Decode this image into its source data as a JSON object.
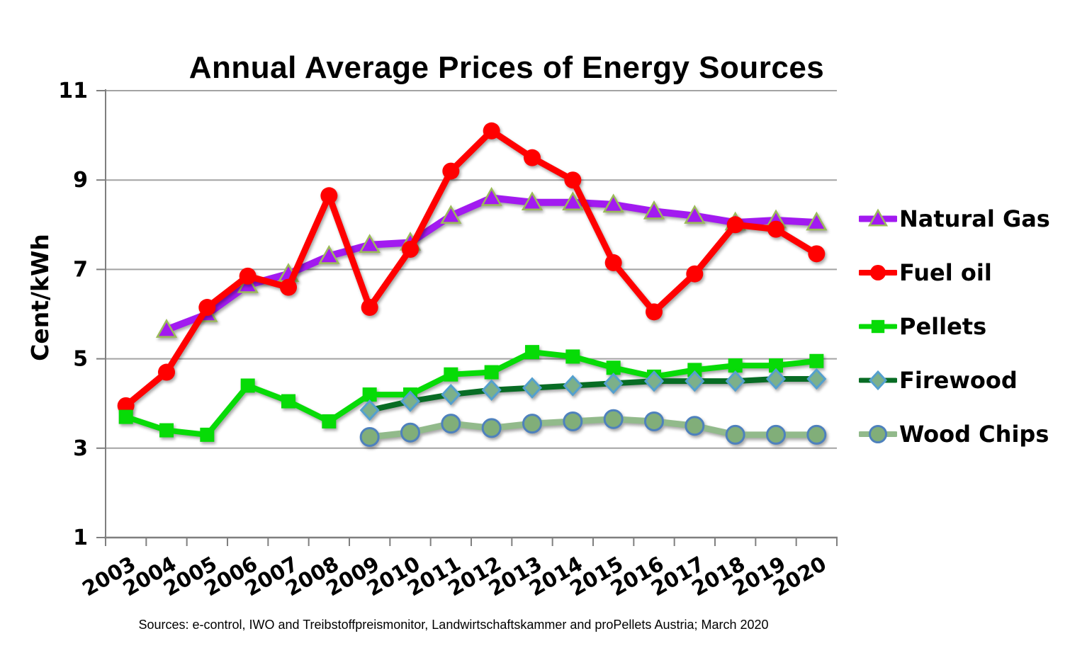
{
  "title": "Annual Average Prices of Energy Sources",
  "source_note": "Sources: e-control, IWO and Treibstoffpreismonitor, Landwirtschaftskammer and proPellets Austria; March 2020",
  "y_axis": {
    "title": "Cent/kWh",
    "min": 1,
    "max": 11,
    "ticks": [
      1,
      3,
      5,
      7,
      9,
      11
    ]
  },
  "chart_data": {
    "type": "line",
    "title": "Annual Average Prices of Energy Sources",
    "xlabel": "",
    "ylabel": "Cent/kWh",
    "ylim": [
      1,
      11
    ],
    "grid": true,
    "legend_position": "right",
    "categories": [
      "2003",
      "2004",
      "2005",
      "2006",
      "2007",
      "2008",
      "2009",
      "2010",
      "2011",
      "2012",
      "2013",
      "2014",
      "2015",
      "2016",
      "2017",
      "2018",
      "2019",
      "2020"
    ],
    "series": [
      {
        "name": "Natural Gas",
        "color": "#A21AF0",
        "marker": "triangle",
        "marker_fill": "#A21AF0",
        "marker_border": "#9BBB59",
        "values": [
          null,
          5.65,
          6.0,
          6.65,
          6.9,
          7.3,
          7.55,
          7.6,
          8.2,
          8.6,
          8.5,
          8.5,
          8.45,
          8.3,
          8.2,
          8.05,
          8.1,
          8.05
        ]
      },
      {
        "name": "Fuel oil",
        "color": "#FF0000",
        "marker": "circle",
        "marker_fill": "#FF0000",
        "marker_border": "#FF0000",
        "values": [
          3.95,
          4.7,
          6.15,
          6.85,
          6.6,
          8.65,
          6.15,
          7.45,
          9.2,
          10.1,
          9.5,
          9.0,
          7.15,
          6.05,
          6.9,
          8.0,
          7.9,
          7.35
        ]
      },
      {
        "name": "Pellets",
        "color": "#07DB07",
        "marker": "square",
        "marker_fill": "#07DB07",
        "marker_border": "#07DB07",
        "values": [
          3.7,
          3.4,
          3.3,
          4.4,
          4.05,
          3.6,
          4.2,
          4.2,
          4.65,
          4.7,
          5.15,
          5.05,
          4.8,
          4.6,
          4.75,
          4.85,
          4.85,
          4.95
        ]
      },
      {
        "name": "Firewood",
        "color": "#086C24",
        "marker": "diamond",
        "marker_fill": "#7CB08A",
        "marker_border": "#54A0CE",
        "values": [
          null,
          null,
          null,
          null,
          null,
          null,
          3.85,
          4.05,
          4.2,
          4.3,
          4.35,
          4.4,
          4.45,
          4.5,
          4.5,
          4.5,
          4.55,
          4.55
        ]
      },
      {
        "name": "Wood Chips",
        "color": "#92BA8B",
        "marker": "circle",
        "marker_fill": "#81AE79",
        "marker_border": "#4E81BD",
        "values": [
          null,
          null,
          null,
          null,
          null,
          null,
          3.25,
          3.35,
          3.55,
          3.45,
          3.55,
          3.6,
          3.65,
          3.6,
          3.5,
          3.3,
          3.3,
          3.3
        ]
      }
    ]
  }
}
